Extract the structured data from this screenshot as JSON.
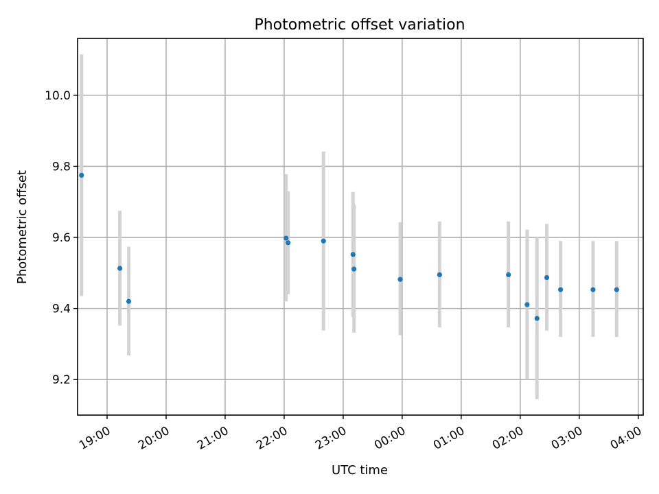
{
  "chart_data": {
    "type": "scatter",
    "title": "Photometric offset variation",
    "xlabel": "UTC time",
    "ylabel": "Photometric offset",
    "grid": true,
    "x_axis_kind": "time",
    "xlim": [
      "18:30",
      "04:05"
    ],
    "ylim": [
      9.1,
      10.16
    ],
    "x_ticks": [
      "19:00",
      "20:00",
      "21:00",
      "22:00",
      "23:00",
      "00:00",
      "01:00",
      "02:00",
      "03:00",
      "04:00"
    ],
    "y_ticks": [
      9.2,
      9.4,
      9.6,
      9.8,
      10.0
    ],
    "colors": {
      "point": "#1f77b4",
      "errorbar": "#d3d3d3"
    },
    "series": [
      {
        "points": [
          {
            "x": "18:34",
            "y": 9.775,
            "yerr_low": 9.435,
            "yerr_high": 10.115
          },
          {
            "x": "19:13",
            "y": 9.513,
            "yerr_low": 9.352,
            "yerr_high": 9.675
          },
          {
            "x": "19:22",
            "y": 9.42,
            "yerr_low": 9.268,
            "yerr_high": 9.574
          },
          {
            "x": "22:02",
            "y": 9.598,
            "yerr_low": 9.42,
            "yerr_high": 9.778
          },
          {
            "x": "22:04",
            "y": 9.585,
            "yerr_low": 9.44,
            "yerr_high": 9.73
          },
          {
            "x": "22:40",
            "y": 9.59,
            "yerr_low": 9.338,
            "yerr_high": 9.842
          },
          {
            "x": "23:10",
            "y": 9.552,
            "yerr_low": 9.376,
            "yerr_high": 9.728
          },
          {
            "x": "23:11",
            "y": 9.511,
            "yerr_low": 9.332,
            "yerr_high": 9.692
          },
          {
            "x": "23:58",
            "y": 9.482,
            "yerr_low": 9.325,
            "yerr_high": 9.643
          },
          {
            "x": "00:38",
            "y": 9.495,
            "yerr_low": 9.347,
            "yerr_high": 9.645
          },
          {
            "x": "01:48",
            "y": 9.495,
            "yerr_low": 9.347,
            "yerr_high": 9.645
          },
          {
            "x": "02:07",
            "y": 9.411,
            "yerr_low": 9.2,
            "yerr_high": 9.622
          },
          {
            "x": "02:17",
            "y": 9.372,
            "yerr_low": 9.145,
            "yerr_high": 9.6
          },
          {
            "x": "02:27",
            "y": 9.487,
            "yerr_low": 9.338,
            "yerr_high": 9.638
          },
          {
            "x": "02:41",
            "y": 9.453,
            "yerr_low": 9.32,
            "yerr_high": 9.59
          },
          {
            "x": "03:14",
            "y": 9.453,
            "yerr_low": 9.32,
            "yerr_high": 9.59
          },
          {
            "x": "03:38",
            "y": 9.453,
            "yerr_low": 9.32,
            "yerr_high": 9.59
          }
        ]
      }
    ]
  }
}
